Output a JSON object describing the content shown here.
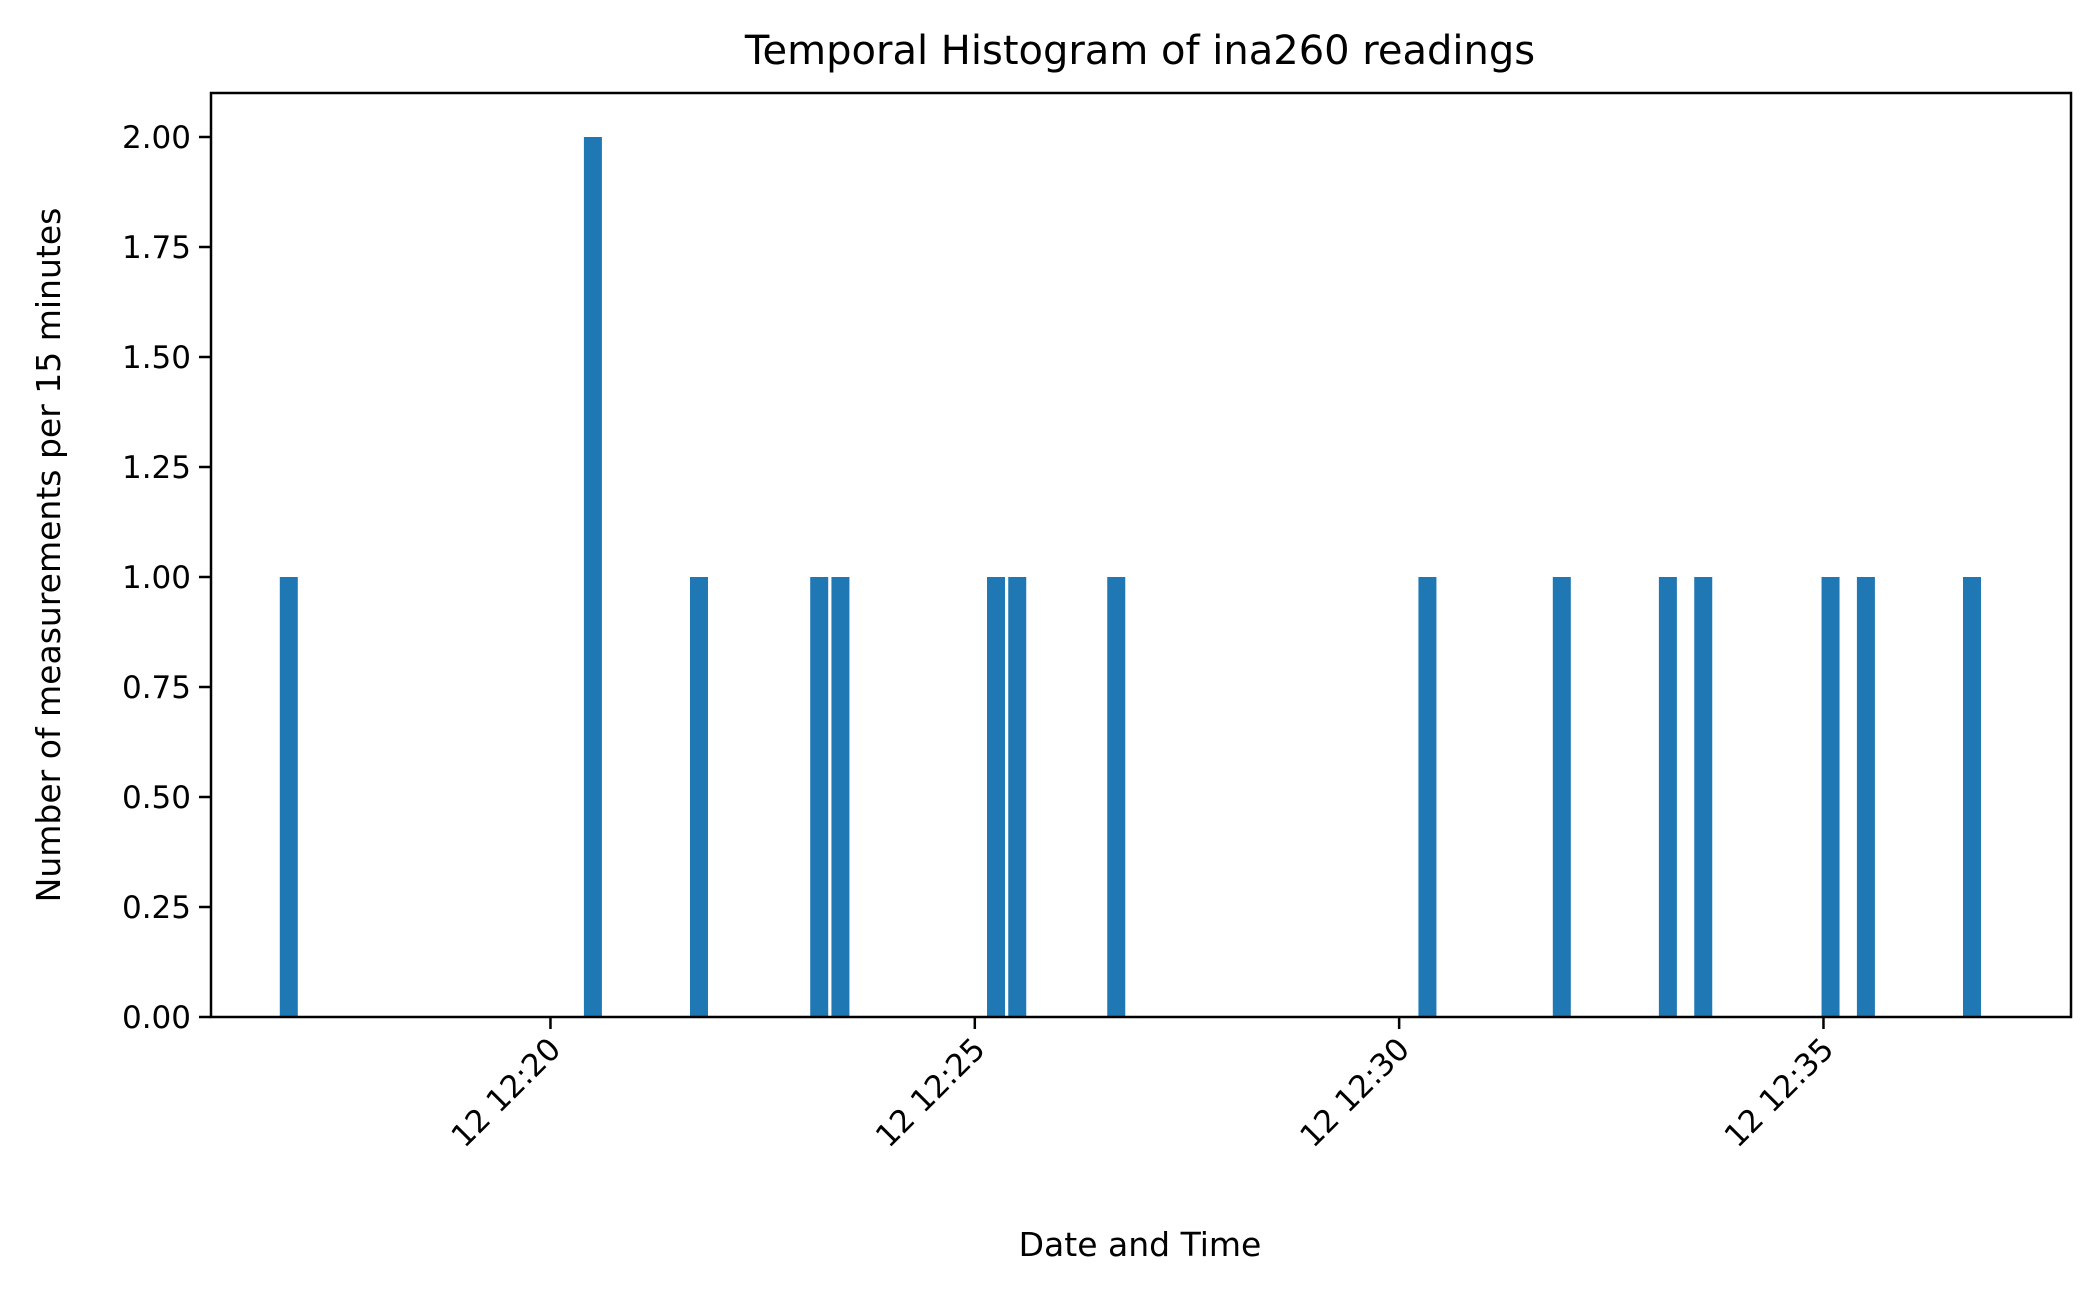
{
  "chart_data": {
    "type": "bar",
    "title": "Temporal Histogram of ina260 readings",
    "xlabel": "Date and Time",
    "ylabel": "Number of measurements per 15 minutes",
    "x_unit": "time (mm:ss within hour 12:xx, day 12)",
    "xlim": [
      "12:16:00",
      "12:37:55"
    ],
    "ylim": [
      0,
      2.1
    ],
    "grid": false,
    "legend": "none",
    "bar_color": "#1f77b4",
    "x_ticks": [
      {
        "time": "12:20:00",
        "label": "12 12:20"
      },
      {
        "time": "12:25:00",
        "label": "12 12:25"
      },
      {
        "time": "12:30:00",
        "label": "12 12:30"
      },
      {
        "time": "12:35:00",
        "label": "12 12:35"
      }
    ],
    "y_ticks": [
      "0.00",
      "0.25",
      "0.50",
      "0.75",
      "1.00",
      "1.25",
      "1.50",
      "1.75",
      "2.00"
    ],
    "bars": [
      {
        "time": "12:16:55",
        "value": 1
      },
      {
        "time": "12:20:30",
        "value": 2
      },
      {
        "time": "12:21:45",
        "value": 1
      },
      {
        "time": "12:23:10",
        "value": 1
      },
      {
        "time": "12:23:25",
        "value": 1
      },
      {
        "time": "12:25:15",
        "value": 1
      },
      {
        "time": "12:25:30",
        "value": 1
      },
      {
        "time": "12:26:40",
        "value": 1
      },
      {
        "time": "12:30:20",
        "value": 1
      },
      {
        "time": "12:31:55",
        "value": 1
      },
      {
        "time": "12:33:10",
        "value": 1
      },
      {
        "time": "12:33:35",
        "value": 1
      },
      {
        "time": "12:35:05",
        "value": 1
      },
      {
        "time": "12:35:30",
        "value": 1
      },
      {
        "time": "12:36:45",
        "value": 1
      }
    ]
  }
}
